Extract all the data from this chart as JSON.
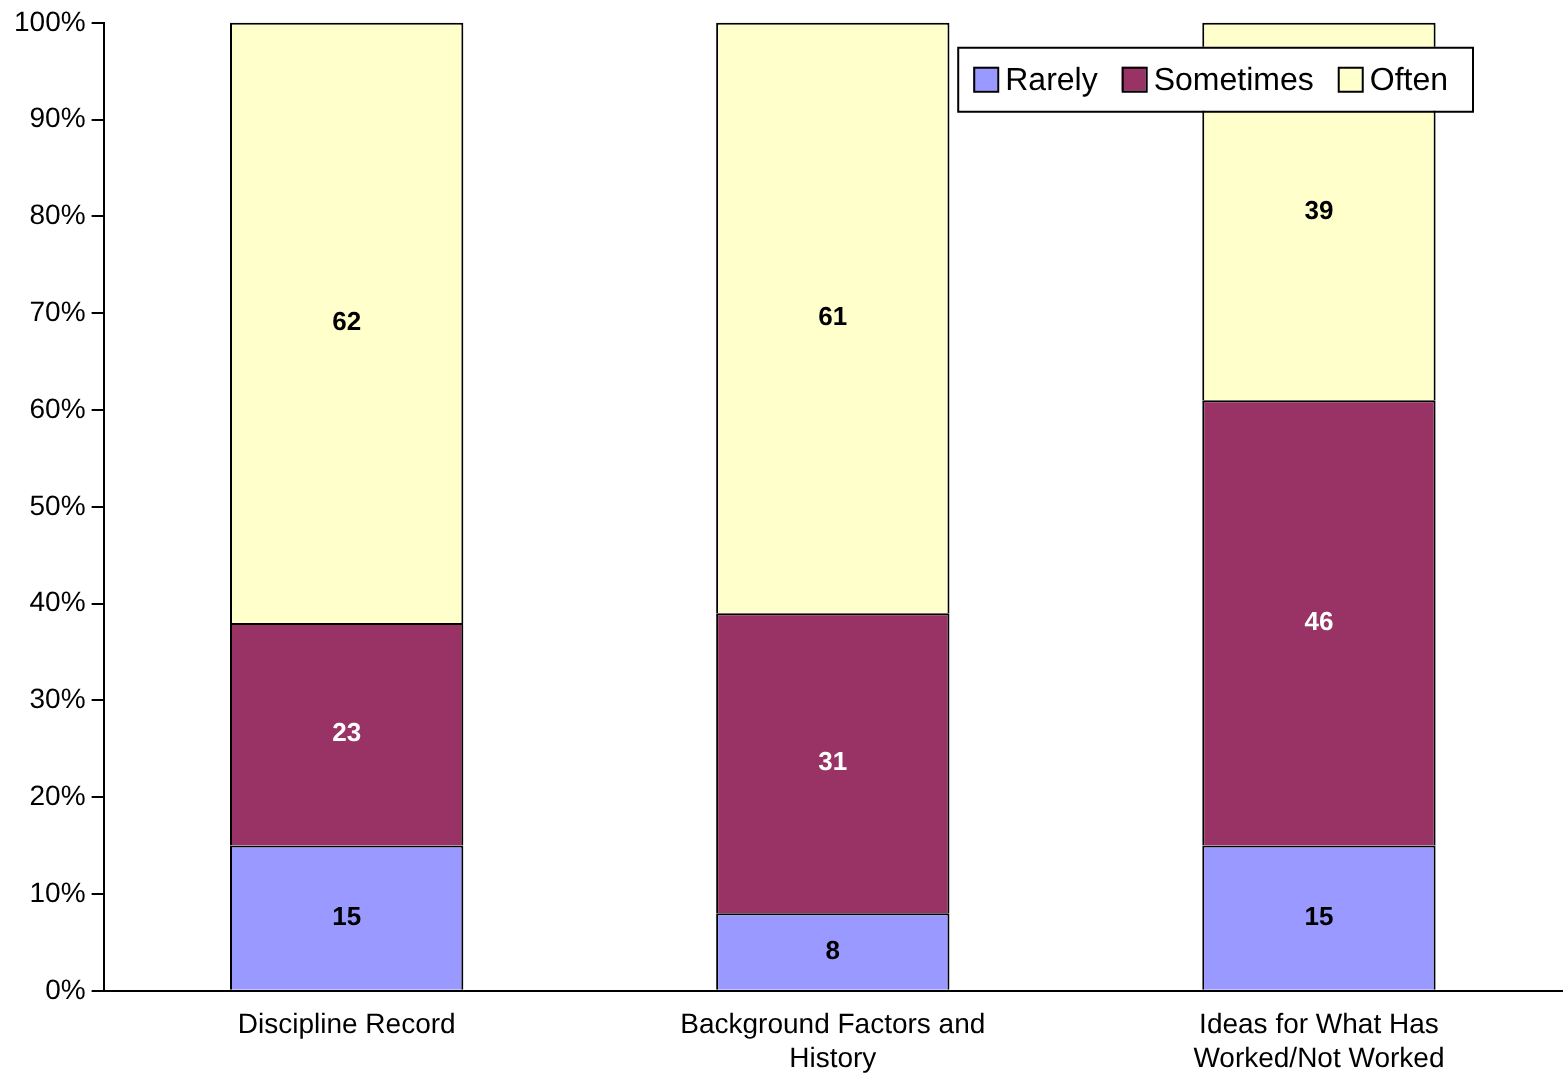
{
  "chart_data": {
    "type": "bar",
    "stacked": true,
    "categories": [
      "Discipline Record",
      "Background Factors and History",
      "Ideas for What Has Worked/Not Worked"
    ],
    "series": [
      {
        "name": "Rarely",
        "color": "#9999ff",
        "values": [
          15,
          8,
          15
        ]
      },
      {
        "name": "Sometimes",
        "color": "#993366",
        "values": [
          23,
          31,
          46
        ]
      },
      {
        "name": "Often",
        "color": "#ffffcc",
        "values": [
          62,
          61,
          39
        ]
      }
    ],
    "ylim": [
      0,
      100
    ],
    "yticks": [
      {
        "value": 0,
        "label": "0%"
      },
      {
        "value": 10,
        "label": "10%"
      },
      {
        "value": 20,
        "label": "20%"
      },
      {
        "value": 30,
        "label": "30%"
      },
      {
        "value": 40,
        "label": "40%"
      },
      {
        "value": 50,
        "label": "50%"
      },
      {
        "value": 60,
        "label": "60%"
      },
      {
        "value": 70,
        "label": "70%"
      },
      {
        "value": 80,
        "label": "80%"
      },
      {
        "value": 90,
        "label": "90%"
      },
      {
        "value": 100,
        "label": "100%"
      }
    ],
    "grid": false,
    "legend": "top right",
    "data_labels": true
  }
}
